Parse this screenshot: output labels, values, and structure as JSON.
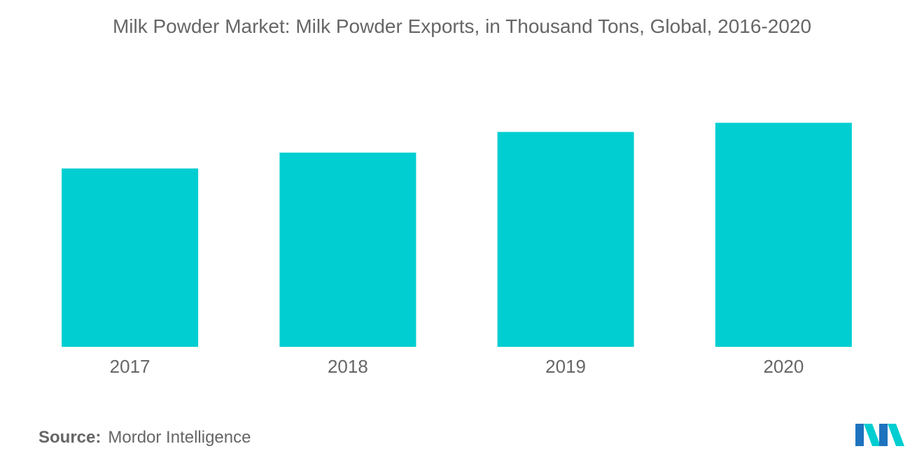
{
  "chart_data": {
    "type": "bar",
    "title": "Milk Powder Market: Milk Powder Exports, in Thousand Tons, Global, 2016-2020",
    "categories": [
      "2017",
      "2018",
      "2019",
      "2020"
    ],
    "values": [
      215,
      234,
      259,
      270
    ],
    "ylim": [
      0,
      300
    ],
    "grid": false,
    "legend": "none"
  },
  "colors": {
    "bar": "#00CED1",
    "text": "#666666",
    "logo_primary": "#1E73BE",
    "logo_secondary": "#00CED1"
  },
  "source": {
    "label": "Source:",
    "text": "Mordor Intelligence"
  },
  "logo": {
    "icon": "mordor-intelligence-logo-icon"
  }
}
